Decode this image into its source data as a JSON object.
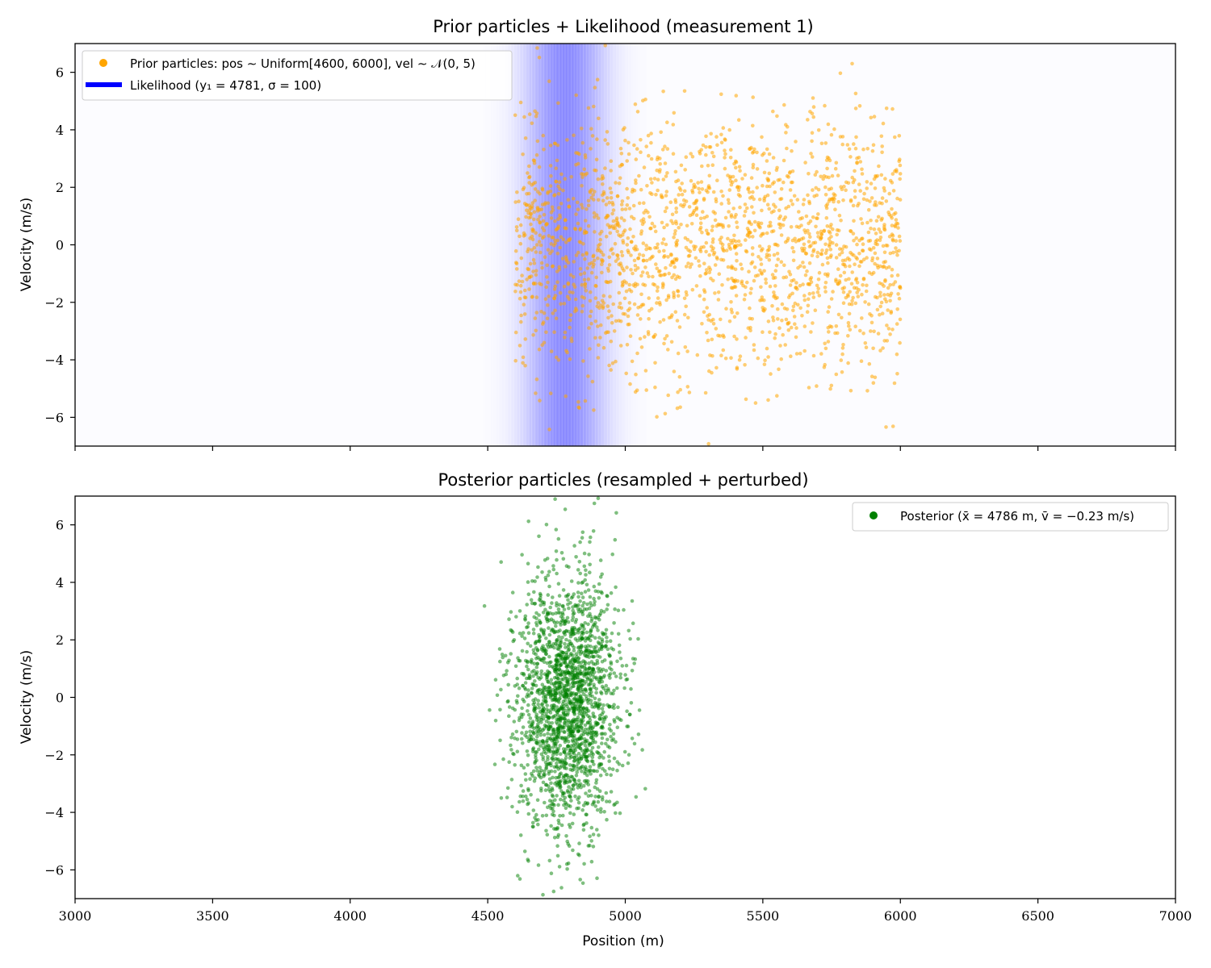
{
  "chart_data": [
    {
      "type": "scatter",
      "title": "Prior particles + Likelihood (measurement 1)",
      "xlabel": "",
      "ylabel": "Velocity (m/s)",
      "xlim": [
        3000,
        7000
      ],
      "ylim": [
        -7,
        7
      ],
      "xticks": [
        3000,
        3500,
        4000,
        4500,
        5000,
        5500,
        6000,
        6500,
        7000
      ],
      "xtick_labels_visible": false,
      "yticks": [
        -6,
        -4,
        -2,
        0,
        2,
        4,
        6
      ],
      "ytick_labels": [
        "−6",
        "−4",
        "−2",
        "0",
        "2",
        "4",
        "6"
      ],
      "grid": false,
      "legend_position": "top-left",
      "likelihood": {
        "mean": 4781,
        "sigma": 100,
        "color": "#0000ff",
        "legend": "Likelihood (y₁ = 4781, σ = 100)"
      },
      "series": [
        {
          "name": "Prior particles: pos ∼ Uniform[4600, 6000], vel ∼ 𝒩(0, 5)",
          "color": "#ffa500",
          "opacity": 0.55,
          "distribution": {
            "x": {
              "kind": "uniform",
              "min": 4600,
              "max": 6000
            },
            "y": {
              "kind": "normal",
              "mean": 0,
              "sd": 2.24
            },
            "count": 2000,
            "seed": 11
          }
        }
      ]
    },
    {
      "type": "scatter",
      "title": "Posterior particles (resampled + perturbed)",
      "xlabel": "Position (m)",
      "ylabel": "Velocity (m/s)",
      "xlim": [
        3000,
        7000
      ],
      "ylim": [
        -7,
        7
      ],
      "xticks": [
        3000,
        3500,
        4000,
        4500,
        5000,
        5500,
        6000,
        6500,
        7000
      ],
      "xtick_labels": [
        "3000",
        "3500",
        "4000",
        "4500",
        "5000",
        "5500",
        "6000",
        "6500",
        "7000"
      ],
      "yticks": [
        -6,
        -4,
        -2,
        0,
        2,
        4,
        6
      ],
      "ytick_labels": [
        "−6",
        "−4",
        "−2",
        "0",
        "2",
        "4",
        "6"
      ],
      "grid": false,
      "legend_position": "top-right",
      "series": [
        {
          "name": "Posterior (x̄ = 4786 m, v̄ = −0.23 m/s)",
          "color": "#008000",
          "opacity": 0.5,
          "mean_x": 4786,
          "mean_v": -0.23,
          "distribution": {
            "x": {
              "kind": "normal",
              "mean": 4786,
              "sd": 95
            },
            "y": {
              "kind": "normal",
              "mean": -0.23,
              "sd": 2.2
            },
            "count": 2000,
            "seed": 23
          }
        }
      ]
    }
  ]
}
